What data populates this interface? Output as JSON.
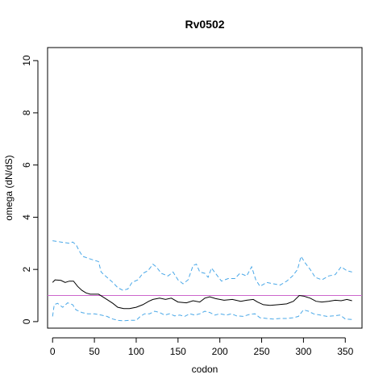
{
  "chart_data": {
    "type": "line",
    "title": "Rv0502",
    "xlabel": "codon",
    "ylabel": "omega (dN/dS)",
    "xlim": [
      -6,
      370
    ],
    "ylim": [
      -0.25,
      10.5
    ],
    "xticks": [
      "0",
      "50",
      "100",
      "150",
      "200",
      "250",
      "300",
      "350"
    ],
    "yticks": [
      "0",
      "2",
      "4",
      "6",
      "8",
      "10"
    ],
    "grid": false,
    "reference_line": {
      "y": 1,
      "color": "#cc66cc"
    },
    "series": [
      {
        "role": "estimate",
        "color": "#000000",
        "style": "solid",
        "points": [
          [
            0,
            1.5
          ],
          [
            3,
            1.6
          ],
          [
            10,
            1.58
          ],
          [
            15,
            1.5
          ],
          [
            20,
            1.55
          ],
          [
            25,
            1.55
          ],
          [
            30,
            1.35
          ],
          [
            35,
            1.2
          ],
          [
            40,
            1.1
          ],
          [
            45,
            1.05
          ],
          [
            55,
            1.05
          ],
          [
            60,
            0.95
          ],
          [
            65,
            0.85
          ],
          [
            72,
            0.7
          ],
          [
            78,
            0.55
          ],
          [
            85,
            0.5
          ],
          [
            92,
            0.5
          ],
          [
            100,
            0.55
          ],
          [
            108,
            0.65
          ],
          [
            115,
            0.78
          ],
          [
            120,
            0.85
          ],
          [
            128,
            0.9
          ],
          [
            135,
            0.85
          ],
          [
            142,
            0.9
          ],
          [
            150,
            0.75
          ],
          [
            160,
            0.72
          ],
          [
            168,
            0.8
          ],
          [
            176,
            0.75
          ],
          [
            182,
            0.9
          ],
          [
            188,
            0.95
          ],
          [
            195,
            0.88
          ],
          [
            205,
            0.82
          ],
          [
            215,
            0.85
          ],
          [
            225,
            0.78
          ],
          [
            232,
            0.82
          ],
          [
            240,
            0.85
          ],
          [
            245,
            0.75
          ],
          [
            252,
            0.65
          ],
          [
            260,
            0.62
          ],
          [
            270,
            0.65
          ],
          [
            280,
            0.68
          ],
          [
            288,
            0.78
          ],
          [
            295,
            1.0
          ],
          [
            300,
            0.98
          ],
          [
            308,
            0.9
          ],
          [
            315,
            0.78
          ],
          [
            322,
            0.75
          ],
          [
            330,
            0.78
          ],
          [
            338,
            0.82
          ],
          [
            345,
            0.8
          ],
          [
            352,
            0.85
          ],
          [
            358,
            0.8
          ]
        ]
      },
      {
        "role": "upper",
        "color": "#4aa8e8",
        "style": "dashed",
        "points": [
          [
            0,
            3.1
          ],
          [
            10,
            3.05
          ],
          [
            20,
            3.0
          ],
          [
            24,
            3.05
          ],
          [
            28,
            2.95
          ],
          [
            32,
            2.7
          ],
          [
            36,
            2.5
          ],
          [
            45,
            2.4
          ],
          [
            55,
            2.3
          ],
          [
            58,
            1.9
          ],
          [
            65,
            1.7
          ],
          [
            72,
            1.5
          ],
          [
            78,
            1.3
          ],
          [
            84,
            1.2
          ],
          [
            90,
            1.25
          ],
          [
            95,
            1.5
          ],
          [
            102,
            1.6
          ],
          [
            108,
            1.85
          ],
          [
            114,
            1.95
          ],
          [
            120,
            2.2
          ],
          [
            124,
            2.1
          ],
          [
            130,
            1.85
          ],
          [
            138,
            1.75
          ],
          [
            144,
            1.9
          ],
          [
            150,
            1.6
          ],
          [
            156,
            1.45
          ],
          [
            162,
            1.6
          ],
          [
            168,
            2.15
          ],
          [
            172,
            2.2
          ],
          [
            176,
            1.9
          ],
          [
            182,
            1.85
          ],
          [
            186,
            1.7
          ],
          [
            190,
            2.05
          ],
          [
            196,
            1.8
          ],
          [
            202,
            1.55
          ],
          [
            210,
            1.65
          ],
          [
            218,
            1.65
          ],
          [
            224,
            1.85
          ],
          [
            232,
            1.75
          ],
          [
            238,
            2.1
          ],
          [
            243,
            1.6
          ],
          [
            248,
            1.35
          ],
          [
            256,
            1.5
          ],
          [
            264,
            1.45
          ],
          [
            272,
            1.4
          ],
          [
            280,
            1.55
          ],
          [
            287,
            1.75
          ],
          [
            293,
            2.0
          ],
          [
            297,
            2.5
          ],
          [
            302,
            2.25
          ],
          [
            308,
            2.0
          ],
          [
            314,
            1.7
          ],
          [
            322,
            1.6
          ],
          [
            330,
            1.75
          ],
          [
            338,
            1.8
          ],
          [
            345,
            2.1
          ],
          [
            352,
            1.95
          ],
          [
            358,
            1.9
          ]
        ]
      },
      {
        "role": "lower",
        "color": "#4aa8e8",
        "style": "dashed",
        "points": [
          [
            0,
            0.2
          ],
          [
            2,
            0.65
          ],
          [
            6,
            0.7
          ],
          [
            12,
            0.55
          ],
          [
            18,
            0.72
          ],
          [
            24,
            0.65
          ],
          [
            28,
            0.45
          ],
          [
            35,
            0.35
          ],
          [
            42,
            0.3
          ],
          [
            50,
            0.3
          ],
          [
            58,
            0.25
          ],
          [
            65,
            0.2
          ],
          [
            72,
            0.1
          ],
          [
            78,
            0.05
          ],
          [
            85,
            0.03
          ],
          [
            92,
            0.05
          ],
          [
            100,
            0.05
          ],
          [
            105,
            0.2
          ],
          [
            110,
            0.3
          ],
          [
            116,
            0.3
          ],
          [
            122,
            0.4
          ],
          [
            128,
            0.35
          ],
          [
            134,
            0.25
          ],
          [
            140,
            0.3
          ],
          [
            146,
            0.22
          ],
          [
            152,
            0.25
          ],
          [
            158,
            0.2
          ],
          [
            164,
            0.3
          ],
          [
            170,
            0.25
          ],
          [
            176,
            0.3
          ],
          [
            182,
            0.4
          ],
          [
            188,
            0.35
          ],
          [
            194,
            0.25
          ],
          [
            200,
            0.3
          ],
          [
            208,
            0.25
          ],
          [
            214,
            0.3
          ],
          [
            220,
            0.22
          ],
          [
            228,
            0.2
          ],
          [
            236,
            0.28
          ],
          [
            242,
            0.3
          ],
          [
            248,
            0.15
          ],
          [
            256,
            0.12
          ],
          [
            264,
            0.1
          ],
          [
            272,
            0.12
          ],
          [
            280,
            0.12
          ],
          [
            288,
            0.15
          ],
          [
            294,
            0.2
          ],
          [
            300,
            0.45
          ],
          [
            306,
            0.4
          ],
          [
            312,
            0.3
          ],
          [
            320,
            0.25
          ],
          [
            328,
            0.2
          ],
          [
            336,
            0.22
          ],
          [
            344,
            0.25
          ],
          [
            350,
            0.1
          ],
          [
            358,
            0.08
          ]
        ]
      }
    ]
  }
}
